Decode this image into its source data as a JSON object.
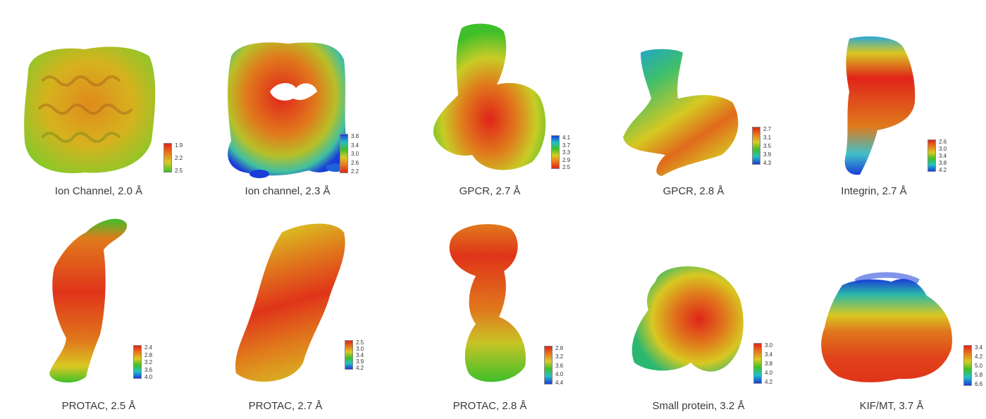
{
  "panels": [
    {
      "caption": "Ion Channel, 2.0 Å",
      "colorbar": [
        "1.9",
        "2.2",
        "2.5"
      ],
      "scale_top": "red",
      "scale_bottom": "green"
    },
    {
      "caption": "Ion channel, 2.3 Å",
      "colorbar": [
        "3.8",
        "3.4",
        "3.0",
        "2.6",
        "2.2"
      ],
      "scale_top": "blue",
      "scale_bottom": "red"
    },
    {
      "caption": "GPCR, 2.7 Å",
      "colorbar": [
        "4.1",
        "3.7",
        "3.3",
        "2.9",
        "2.5"
      ],
      "scale_top": "blue",
      "scale_bottom": "red"
    },
    {
      "caption": "GPCR, 2.8 Å",
      "colorbar": [
        "2.7",
        "3.1",
        "3.5",
        "3.9",
        "4.3"
      ],
      "scale_top": "red",
      "scale_bottom": "blue"
    },
    {
      "caption": "Integrin, 2.7 Å",
      "colorbar": [
        "2.6",
        "3.0",
        "3.4",
        "3.8",
        "4.2"
      ],
      "scale_top": "red",
      "scale_bottom": "blue"
    },
    {
      "caption": "PROTAC, 2.5 Å",
      "colorbar": [
        "2.4",
        "2.8",
        "3.2",
        "3.6",
        "4.0"
      ],
      "scale_top": "red",
      "scale_bottom": "blue"
    },
    {
      "caption": "PROTAC, 2.7 Å",
      "colorbar": [
        "2.5",
        "3.0",
        "3.4",
        "3.9",
        "4.2"
      ],
      "scale_top": "red",
      "scale_bottom": "blue"
    },
    {
      "caption": "PROTAC, 2.8 Å",
      "colorbar": [
        "2.8",
        "3.2",
        "3.6",
        "4.0",
        "4.4"
      ],
      "scale_top": "red",
      "scale_bottom": "blue"
    },
    {
      "caption": "Small protein, 3.2 Å",
      "colorbar": [
        "3.0",
        "3.4",
        "3.8",
        "4.0",
        "4.2"
      ],
      "scale_top": "red",
      "scale_bottom": "blue"
    },
    {
      "caption": "KIF/MT, 3.7 Å",
      "colorbar": [
        "3.4",
        "4.2",
        "5.0",
        "5.8",
        "6.6"
      ],
      "scale_top": "red",
      "scale_bottom": "blue"
    }
  ],
  "colors": {
    "red": "#e0241a",
    "orange": "#e8781c",
    "yellow": "#d8cc22",
    "green": "#3fbf2a",
    "cyan": "#22c0c8",
    "blue": "#1a3cd8"
  }
}
